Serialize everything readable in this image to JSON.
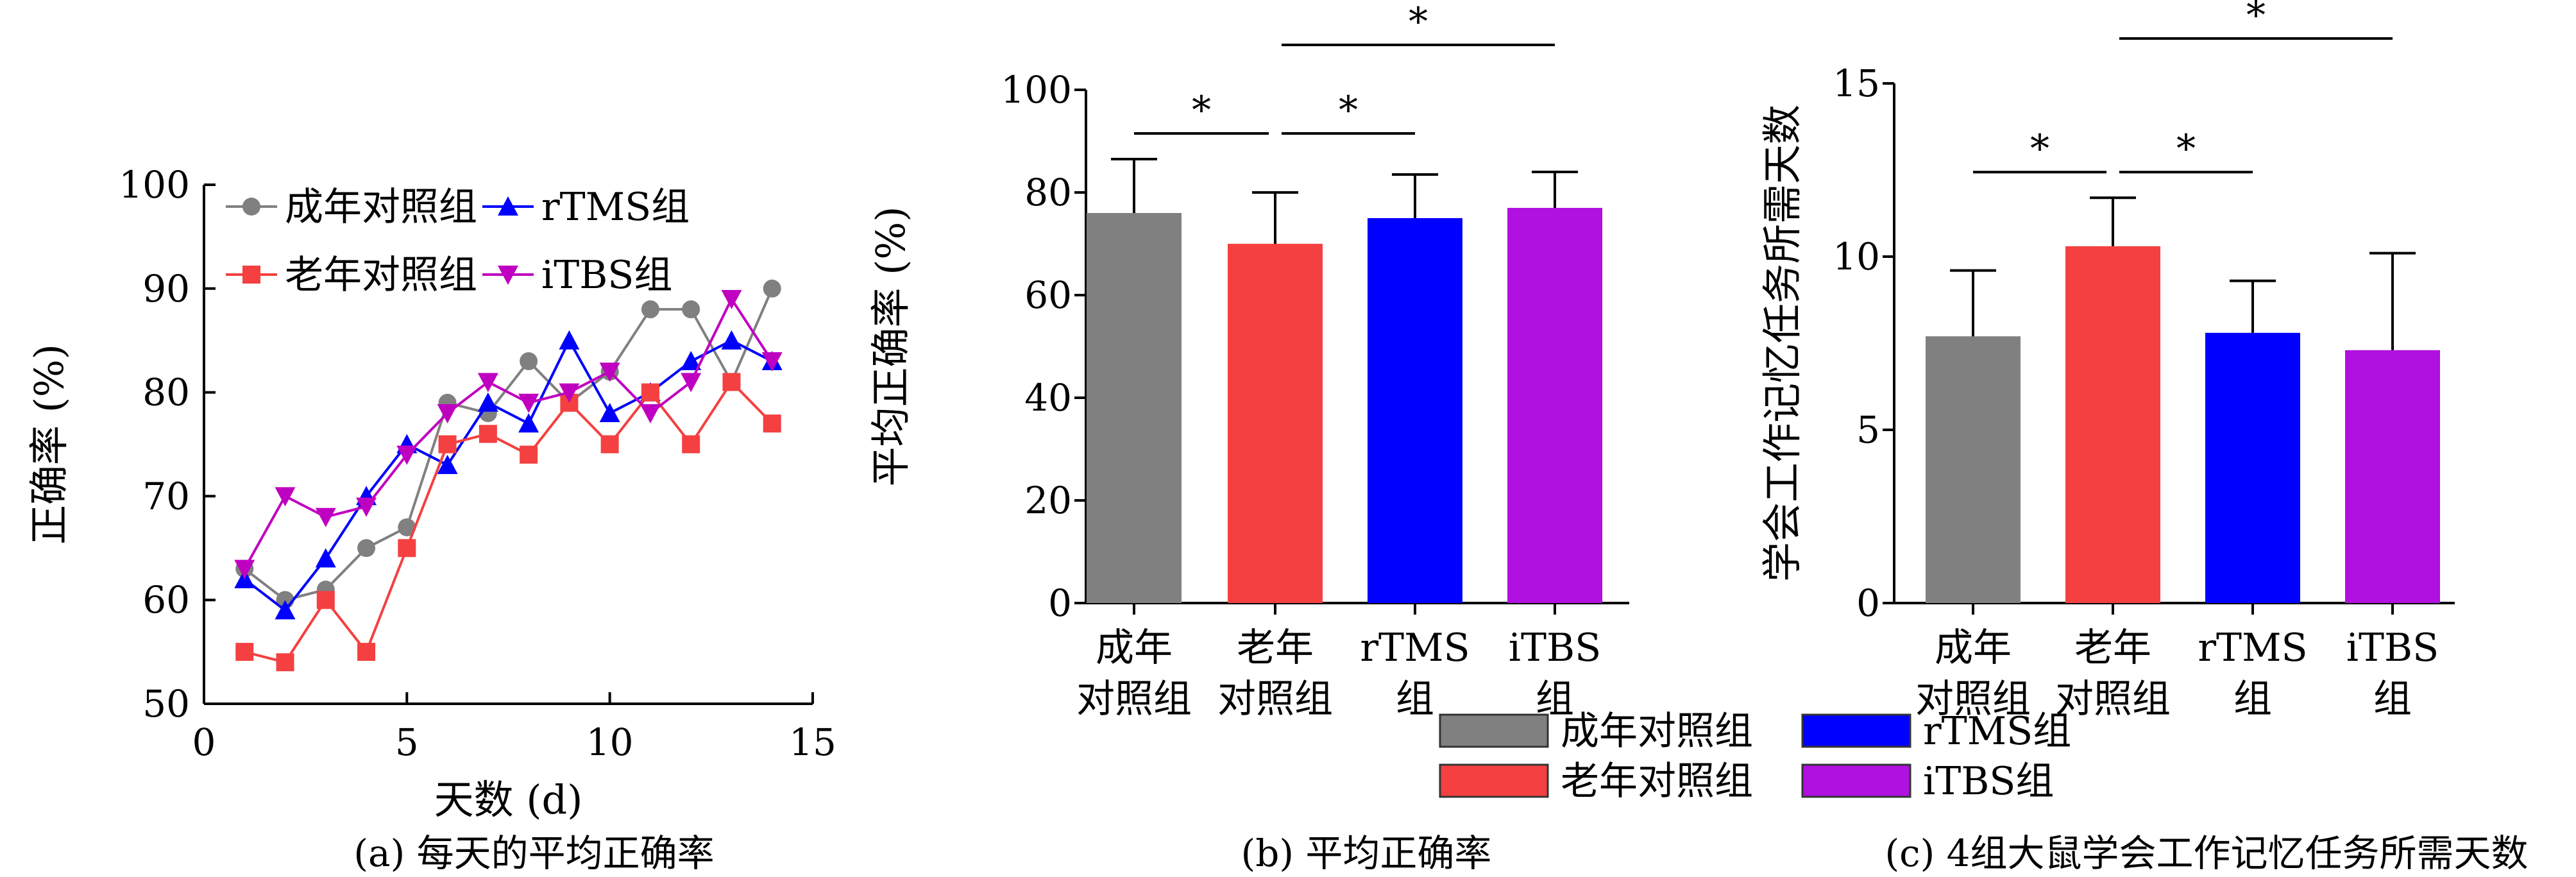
{
  "chart_data": [
    {
      "type": "line",
      "caption": "(a) 每天的平均正确率",
      "xlabel": "天数 (d)",
      "ylabel": "正确率 (%)",
      "xlim": [
        0,
        15
      ],
      "ylim": [
        50,
        100
      ],
      "xticks": [
        0,
        5,
        10,
        15
      ],
      "yticks": [
        50,
        60,
        70,
        80,
        90,
        100
      ],
      "grid": false,
      "legend": "top-left",
      "x": [
        1,
        2,
        3,
        4,
        5,
        6,
        7,
        8,
        9,
        10,
        11,
        12,
        13,
        14
      ],
      "series": [
        {
          "name": "成年对照组",
          "color": "#808080",
          "marker": "circle",
          "values": [
            63,
            60,
            61,
            65,
            67,
            79,
            78,
            83,
            79,
            82,
            88,
            88,
            81,
            90
          ]
        },
        {
          "name": "rTMS组",
          "color": "#0000ff",
          "marker": "triangle-up",
          "values": [
            62,
            59,
            64,
            70,
            75,
            73,
            79,
            77,
            85,
            78,
            80,
            83,
            85,
            83
          ]
        },
        {
          "name": "老年对照组",
          "color": "#f44040",
          "marker": "square",
          "values": [
            55,
            54,
            60,
            55,
            65,
            75,
            76,
            74,
            79,
            75,
            80,
            75,
            81,
            77
          ]
        },
        {
          "name": "iTBS组",
          "color": "#c000c0",
          "marker": "triangle-down",
          "values": [
            63,
            70,
            68,
            69,
            74,
            78,
            81,
            79,
            80,
            82,
            78,
            81,
            89,
            83
          ]
        }
      ]
    },
    {
      "type": "bar",
      "caption": "(b) 平均正确率",
      "ylabel": "平均正确率 (%)",
      "ylim": [
        0,
        100
      ],
      "yticks": [
        0,
        20,
        40,
        60,
        80,
        100
      ],
      "categories": [
        [
          "成年",
          "对照组"
        ],
        [
          "老年",
          "对照组"
        ],
        [
          "rTMS",
          "组"
        ],
        [
          "iTBS",
          "组"
        ]
      ],
      "values": [
        76,
        70,
        75,
        77
      ],
      "errors": [
        10.5,
        10,
        8.5,
        7
      ],
      "colors": [
        "#808080",
        "#f44040",
        "#0000ff",
        "#b010e0"
      ],
      "significance": [
        {
          "from": 0,
          "to": 1,
          "label": "*",
          "level": 1
        },
        {
          "from": 1,
          "to": 2,
          "label": "*",
          "level": 1
        },
        {
          "from": 1,
          "to": 3,
          "label": "*",
          "level": 2
        }
      ]
    },
    {
      "type": "bar",
      "caption": "(c) 4组大鼠学会工作记忆任务所需天数",
      "ylabel": "学会工作记忆任务所需天数",
      "ylim": [
        0,
        15
      ],
      "yticks": [
        0,
        5,
        10,
        15
      ],
      "categories": [
        [
          "成年",
          "对照组"
        ],
        [
          "老年",
          "对照组"
        ],
        [
          "rTMS",
          "组"
        ],
        [
          "iTBS",
          "组"
        ]
      ],
      "values": [
        7.7,
        10.3,
        7.8,
        7.3
      ],
      "errors": [
        1.9,
        1.4,
        1.5,
        2.8
      ],
      "colors": [
        "#808080",
        "#f44040",
        "#0000ff",
        "#b010e0"
      ],
      "significance": [
        {
          "from": 0,
          "to": 1,
          "label": "*",
          "level": 1
        },
        {
          "from": 1,
          "to": 2,
          "label": "*",
          "level": 1
        },
        {
          "from": 1,
          "to": 3,
          "label": "*",
          "level": 2
        }
      ]
    }
  ],
  "bar_legend": [
    {
      "label": "成年对照组",
      "color": "#808080"
    },
    {
      "label": "rTMS组",
      "color": "#0000ff"
    },
    {
      "label": "老年对照组",
      "color": "#f44040"
    },
    {
      "label": "iTBS组",
      "color": "#b010e0"
    }
  ]
}
